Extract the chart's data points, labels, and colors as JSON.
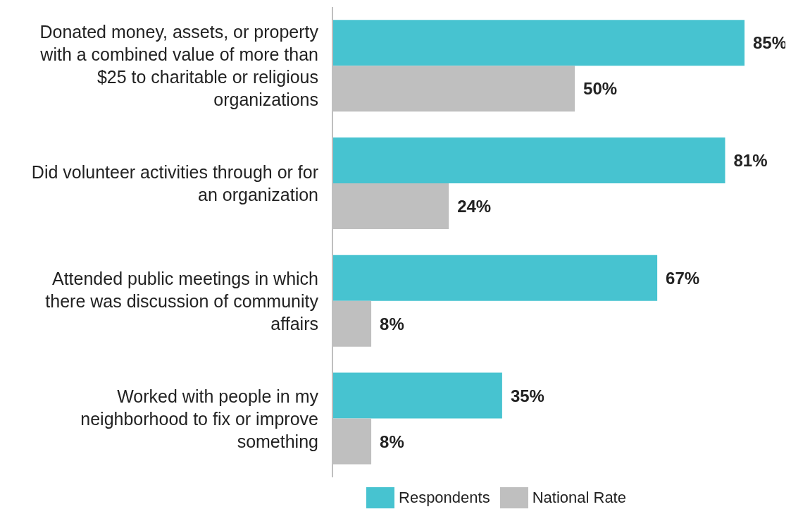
{
  "chart_data": {
    "type": "bar",
    "orientation": "horizontal",
    "categories": [
      "Donated money, assets, or property with a combined value of more than $25 to charitable or religious organizations",
      "Did volunteer activities through or for an organization",
      "Attended public meetings in which there was discussion of community affairs",
      "Worked with people in my neighborhood to fix or improve something"
    ],
    "series": [
      {
        "name": "Respondents",
        "color": "#47c3d0",
        "values": [
          85,
          81,
          67,
          35
        ],
        "value_labels": [
          "85%",
          "81%",
          "67%",
          "35%"
        ]
      },
      {
        "name": "National Rate",
        "color": "#bfbfbf",
        "values": [
          50,
          24,
          8,
          8
        ],
        "value_labels": [
          "50%",
          "24%",
          "8%",
          "8%"
        ]
      }
    ],
    "legend": "bottom"
  }
}
